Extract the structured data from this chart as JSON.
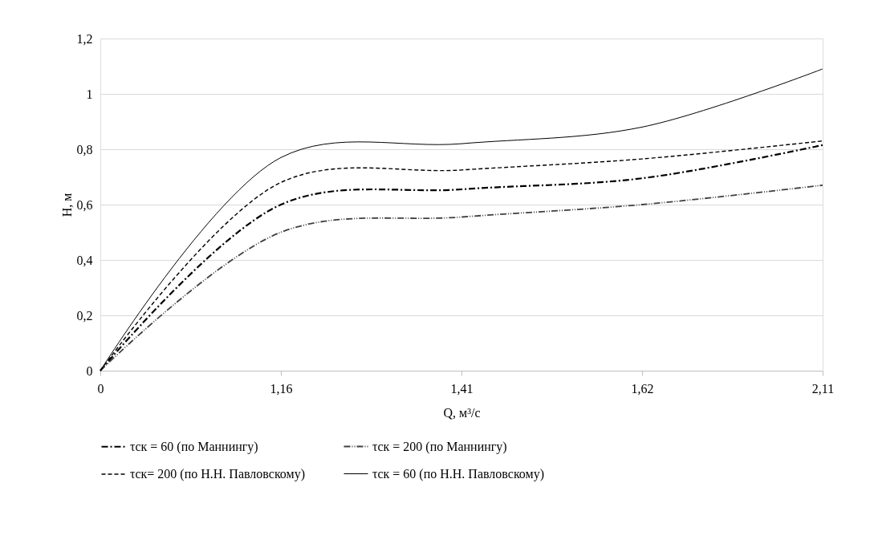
{
  "chart_data": {
    "type": "line",
    "xlabel": "Q, м³/с",
    "ylabel": "H, м",
    "categories": [
      "0",
      "1,16",
      "1,41",
      "1,62",
      "2,11"
    ],
    "ylim": [
      0,
      1.2
    ],
    "yticks": [
      {
        "value": 0,
        "label": "0"
      },
      {
        "value": 0.2,
        "label": "0,2"
      },
      {
        "value": 0.4,
        "label": "0,4"
      },
      {
        "value": 0.6,
        "label": "0,6"
      },
      {
        "value": 0.8,
        "label": "0,8"
      },
      {
        "value": 1,
        "label": "1"
      },
      {
        "value": 1.2,
        "label": "1,2"
      }
    ],
    "grid": "y",
    "legend": "bottom",
    "marker": "none",
    "series": [
      {
        "name": "τск = 60 (по Маннингу)",
        "color": "#000000",
        "line_style": "dashdot",
        "values": [
          0,
          0.6,
          0.655,
          0.695,
          0.815
        ]
      },
      {
        "name": "τск = 200 (по Маннингу)",
        "color": "#404040",
        "line_style": "dashdotdot",
        "values": [
          0,
          0.5,
          0.555,
          0.6,
          0.67
        ]
      },
      {
        "name": "τск= 200 (по Н.Н.  Павловскому)",
        "color": "#000000",
        "line_style": "dashed",
        "values": [
          0,
          0.68,
          0.725,
          0.765,
          0.83
        ]
      },
      {
        "name": "τск = 60 (по Н.Н.  Павловскому)",
        "color": "#000000",
        "line_style": "solid",
        "values": [
          0,
          0.77,
          0.82,
          0.88,
          1.09
        ]
      }
    ]
  }
}
